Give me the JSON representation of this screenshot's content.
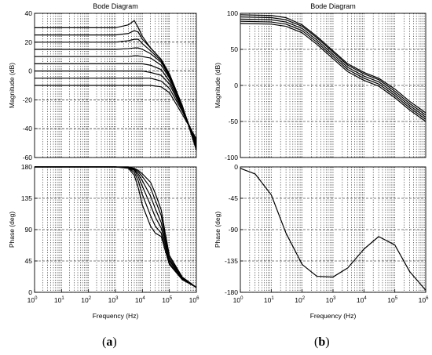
{
  "captions": {
    "a": {
      "open": "(",
      "letter": "a",
      "close": ")"
    },
    "b": {
      "open": "(",
      "letter": "b",
      "close": ")"
    }
  },
  "chart_data": [
    {
      "type": "line",
      "panel": "a",
      "title": "Bode Diagram",
      "log_x": true,
      "xlim": [
        1,
        1000000
      ],
      "x_ticks": [
        [
          "10",
          "0"
        ],
        [
          "10",
          "1"
        ],
        [
          "10",
          "2"
        ],
        [
          "10",
          "3"
        ],
        [
          "10",
          "4"
        ],
        [
          "10",
          "5"
        ],
        [
          "10",
          "6"
        ]
      ],
      "xlabel": "Frequency  (Hz)",
      "magnitude": {
        "ylabel": "Magnitude (dB)",
        "ylim": [
          -60,
          40
        ],
        "y_ticks": [
          "40",
          "20",
          "0",
          "-20",
          "-40",
          "-60"
        ],
        "series": [
          {
            "x": [
              1,
              100,
              1000,
              3000,
              5000,
              7000,
              10000,
              20000,
              50000,
              100000,
              300000,
              1000000
            ],
            "y": [
              30,
              30,
              30,
              32,
              35,
              30,
              24,
              16,
              8,
              -2,
              -24,
              -55
            ]
          },
          {
            "x": [
              1,
              100,
              1000,
              3000,
              5000,
              7000,
              10000,
              20000,
              50000,
              100000,
              300000,
              1000000
            ],
            "y": [
              25,
              25,
              25,
              26,
              28,
              27,
              22,
              16,
              8,
              -2,
              -24,
              -54
            ]
          },
          {
            "x": [
              1,
              100,
              1000,
              3000,
              5000,
              7000,
              10000,
              20000,
              50000,
              100000,
              300000,
              1000000
            ],
            "y": [
              20,
              20,
              20,
              21,
              22,
              22,
              19,
              14,
              7,
              -3,
              -24,
              -53
            ]
          },
          {
            "x": [
              1,
              100,
              1000,
              3000,
              5000,
              7000,
              10000,
              20000,
              50000,
              100000,
              300000,
              1000000
            ],
            "y": [
              15,
              15,
              15,
              15.5,
              16,
              16,
              15,
              12,
              6,
              -4,
              -25,
              -52
            ]
          },
          {
            "x": [
              1,
              100,
              1000,
              3000,
              5000,
              7000,
              10000,
              20000,
              50000,
              100000,
              300000,
              1000000
            ],
            "y": [
              10,
              10,
              10,
              10,
              10.5,
              10.5,
              10,
              9,
              4,
              -5,
              -25,
              -51
            ]
          },
          {
            "x": [
              1,
              100,
              1000,
              3000,
              5000,
              7000,
              10000,
              20000,
              50000,
              100000,
              300000,
              1000000
            ],
            "y": [
              5,
              5,
              5,
              5,
              5,
              5,
              5,
              4,
              1,
              -7,
              -26,
              -50
            ]
          },
          {
            "x": [
              1,
              100,
              1000,
              3000,
              5000,
              7000,
              10000,
              20000,
              50000,
              100000,
              300000,
              1000000
            ],
            "y": [
              0,
              0,
              0,
              0,
              0,
              0,
              0,
              -1,
              -3,
              -9,
              -27,
              -49
            ]
          },
          {
            "x": [
              1,
              100,
              1000,
              3000,
              5000,
              7000,
              10000,
              20000,
              50000,
              100000,
              300000,
              1000000
            ],
            "y": [
              -5,
              -5,
              -5,
              -5,
              -5,
              -5,
              -5,
              -5,
              -7,
              -12,
              -28,
              -48
            ]
          },
          {
            "x": [
              1,
              100,
              1000,
              3000,
              5000,
              7000,
              10000,
              20000,
              50000,
              100000,
              300000,
              1000000
            ],
            "y": [
              -10,
              -10,
              -10,
              -10,
              -10,
              -10,
              -10,
              -10,
              -11,
              -15,
              -30,
              -47
            ]
          }
        ]
      },
      "phase": {
        "ylabel": "Phase (deg)",
        "ylim": [
          0,
          180
        ],
        "y_ticks": [
          "180",
          "135",
          "90",
          "45",
          "0"
        ],
        "series": [
          {
            "x": [
              1,
              1000,
              3000,
              5000,
              7000,
              10000,
              20000,
              30000,
              50000,
              70000,
              100000,
              300000,
              1000000
            ],
            "y": [
              180,
              180,
              178,
              168,
              150,
              125,
              95,
              85,
              80,
              60,
              40,
              18,
              7
            ]
          },
          {
            "x": [
              1,
              1000,
              3000,
              5000,
              7000,
              10000,
              20000,
              30000,
              50000,
              70000,
              100000,
              300000,
              1000000
            ],
            "y": [
              180,
              180,
              179,
              172,
              160,
              140,
              110,
              95,
              85,
              65,
              42,
              19,
              7
            ]
          },
          {
            "x": [
              1,
              1000,
              3000,
              5000,
              7000,
              10000,
              20000,
              30000,
              50000,
              70000,
              100000,
              300000,
              1000000
            ],
            "y": [
              180,
              180,
              179,
              175,
              166,
              152,
              125,
              108,
              92,
              70,
              45,
              20,
              7
            ]
          },
          {
            "x": [
              1,
              1000,
              3000,
              5000,
              7000,
              10000,
              20000,
              30000,
              50000,
              70000,
              100000,
              300000,
              1000000
            ],
            "y": [
              180,
              180,
              179,
              176,
              170,
              160,
              138,
              120,
              100,
              75,
              47,
              20,
              7
            ]
          },
          {
            "x": [
              1,
              1000,
              3000,
              5000,
              7000,
              10000,
              20000,
              30000,
              50000,
              70000,
              100000,
              300000,
              1000000
            ],
            "y": [
              180,
              180,
              180,
              177,
              173,
              166,
              150,
              132,
              110,
              80,
              50,
              21,
              7
            ]
          },
          {
            "x": [
              1,
              1000,
              3000,
              5000,
              7000,
              10000,
              20000,
              30000,
              50000,
              70000,
              100000,
              300000,
              1000000
            ],
            "y": [
              180,
              180,
              180,
              178,
              175,
              170,
              158,
              142,
              118,
              85,
              53,
              22,
              7
            ]
          }
        ]
      }
    },
    {
      "type": "line",
      "panel": "b",
      "title": "Bode Diagram",
      "log_x": true,
      "xlim": [
        1,
        1000000
      ],
      "x_ticks": [
        [
          "10",
          "0"
        ],
        [
          "10",
          "1"
        ],
        [
          "10",
          "2"
        ],
        [
          "10",
          "3"
        ],
        [
          "10",
          "4"
        ],
        [
          "10",
          "5"
        ],
        [
          "10",
          "6"
        ]
      ],
      "xlabel": "Frequency  (Hz)",
      "magnitude": {
        "ylabel": "Magnitude (dB)",
        "ylim": [
          -100,
          100
        ],
        "y_ticks": [
          "100",
          "50",
          "0",
          "-50",
          "-100"
        ],
        "series": [
          {
            "x": [
              1,
              10,
              30,
              100,
              300,
              1000,
              3000,
              10000,
              30000,
              100000,
              300000,
              1000000
            ],
            "y": [
              98,
              97,
              94,
              84,
              68,
              48,
              30,
              18,
              10,
              -5,
              -22,
              -38
            ]
          },
          {
            "x": [
              1,
              10,
              30,
              100,
              300,
              1000,
              3000,
              10000,
              30000,
              100000,
              300000,
              1000000
            ],
            "y": [
              95,
              94,
              91,
              82,
              66,
              46,
              28,
              16,
              8,
              -8,
              -25,
              -41
            ]
          },
          {
            "x": [
              1,
              10,
              30,
              100,
              300,
              1000,
              3000,
              10000,
              30000,
              100000,
              300000,
              1000000
            ],
            "y": [
              92,
              91,
              88,
              79,
              63,
              43,
              25,
              13,
              5,
              -11,
              -28,
              -44
            ]
          },
          {
            "x": [
              1,
              10,
              30,
              100,
              300,
              1000,
              3000,
              10000,
              30000,
              100000,
              300000,
              1000000
            ],
            "y": [
              89,
              88,
              85,
              76,
              60,
              40,
              22,
              10,
              2,
              -14,
              -31,
              -47
            ]
          },
          {
            "x": [
              1,
              10,
              30,
              100,
              300,
              1000,
              3000,
              10000,
              30000,
              100000,
              300000,
              1000000
            ],
            "y": [
              86,
              85,
              82,
              73,
              57,
              37,
              19,
              7,
              -1,
              -17,
              -34,
              -50
            ]
          }
        ]
      },
      "phase": {
        "ylabel": "Phase (deg)",
        "ylim": [
          -180,
          0
        ],
        "y_ticks": [
          "0",
          "-45",
          "-90",
          "-135",
          "-180"
        ],
        "series": [
          {
            "x": [
              1,
              3,
              10,
              30,
              100,
              300,
              1000,
              3000,
              10000,
              30000,
              100000,
              300000,
              1000000
            ],
            "y": [
              -2,
              -10,
              -40,
              -95,
              -140,
              -157,
              -158,
              -145,
              -118,
              -100,
              -112,
              -150,
              -177
            ]
          }
        ]
      }
    }
  ]
}
